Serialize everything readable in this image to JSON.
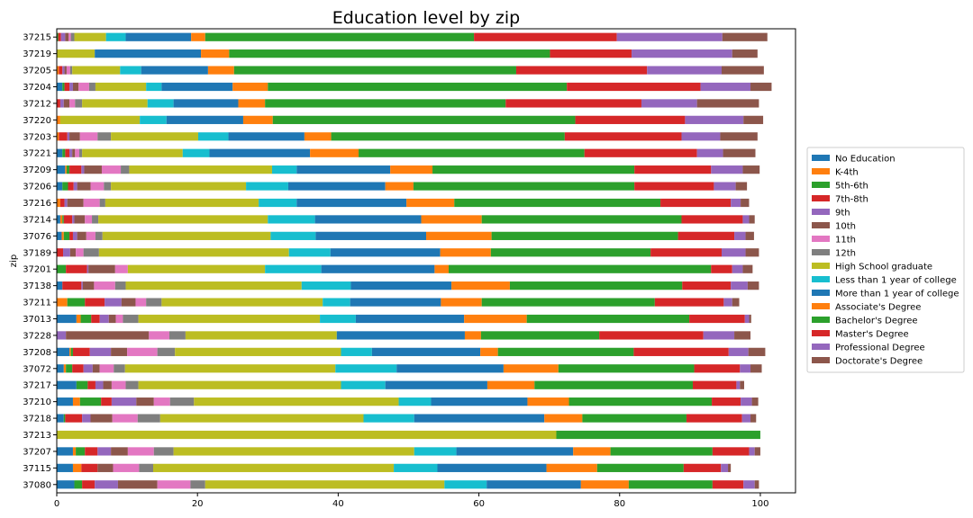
{
  "chart_data": {
    "type": "bar",
    "orientation": "horizontal",
    "stacked": true,
    "title": "Education level by zip",
    "xlabel": "",
    "ylabel": "zip",
    "xlim": [
      0,
      105
    ],
    "xticks": [
      "0",
      "20",
      "40",
      "60",
      "80",
      "100"
    ],
    "grid": false,
    "legend_position": "right",
    "categories": [
      "37215",
      "37219",
      "37205",
      "37204",
      "37212",
      "37220",
      "37203",
      "37221",
      "37209",
      "37206",
      "37216",
      "37214",
      "37076",
      "37189",
      "37201",
      "37138",
      "37211",
      "37013",
      "37228",
      "37208",
      "37072",
      "37217",
      "37210",
      "37218",
      "37213",
      "37207",
      "37115",
      "37080"
    ],
    "series": [
      {
        "name": "No Education",
        "color": "#1f77b4",
        "values": [
          0,
          0,
          0,
          0.8,
          0,
          0,
          0,
          0.8,
          1.2,
          0.8,
          0,
          0.5,
          0.7,
          0,
          0,
          0.8,
          0,
          2.8,
          0,
          1.8,
          1,
          2.8,
          2.3,
          1,
          0,
          2.3,
          2.3,
          2.5
        ]
      },
      {
        "name": "K-4th",
        "color": "#ff7f0e",
        "values": [
          0,
          0,
          0.3,
          0,
          0,
          0.5,
          0.3,
          0,
          0.2,
          0,
          0.5,
          0.3,
          0.3,
          0,
          0,
          0,
          1.5,
          0.6,
          0,
          0.2,
          0.3,
          0,
          1,
          0,
          0,
          0.4,
          1.2,
          0
        ]
      },
      {
        "name": "5th-6th",
        "color": "#2ca02c",
        "values": [
          0.2,
          0,
          0,
          0.3,
          0,
          0,
          0,
          0.4,
          0.4,
          0.8,
          0,
          0.2,
          0.8,
          0,
          1.3,
          0,
          2.5,
          1.5,
          0,
          0.3,
          0.9,
          1.6,
          3,
          0.2,
          0,
          1.3,
          0,
          1.1
        ]
      },
      {
        "name": "7th-8th",
        "color": "#d62728",
        "values": [
          0.4,
          0,
          0.5,
          0.7,
          0.5,
          0,
          1.2,
          0.6,
          1.7,
          0.8,
          0.6,
          1.2,
          0.5,
          0.9,
          3,
          2.7,
          2.8,
          1.2,
          0,
          2.4,
          1.6,
          1.1,
          1.5,
          2.4,
          0,
          1.8,
          2.3,
          1.8
        ]
      },
      {
        "name": "9th",
        "color": "#9467bd",
        "values": [
          0.6,
          0,
          0.3,
          0.5,
          0.5,
          0,
          0.3,
          0.4,
          0.4,
          0.5,
          0.4,
          0.3,
          0.6,
          1,
          0.2,
          0.2,
          2.4,
          1.3,
          1.3,
          3,
          1.3,
          1.1,
          3.5,
          1.2,
          0,
          1.9,
          0,
          3.3
        ]
      },
      {
        "name": "10th",
        "color": "#8c564b",
        "values": [
          0.5,
          0,
          0.3,
          0.8,
          0.8,
          0,
          1.5,
          0.4,
          2.5,
          1.9,
          2.3,
          1.5,
          1.3,
          0.8,
          3.8,
          1.6,
          2,
          1,
          11.8,
          2.3,
          1,
          1.2,
          2.5,
          3.1,
          0,
          2.4,
          2.2,
          5.6
        ]
      },
      {
        "name": "11th",
        "color": "#e377c2",
        "values": [
          0.3,
          0,
          0.5,
          1.5,
          0.8,
          0,
          2.5,
          0.6,
          2.7,
          1.9,
          2.3,
          1,
          1.3,
          1.1,
          1.8,
          3,
          1.5,
          1,
          2.9,
          4.3,
          2,
          2,
          2.3,
          3.6,
          0,
          3.7,
          3.7,
          4.7
        ]
      },
      {
        "name": "12th",
        "color": "#7f7f7f",
        "values": [
          0.5,
          0,
          0.3,
          0.9,
          1,
          0,
          1.9,
          0.4,
          1.2,
          1,
          0.8,
          0.9,
          1,
          2.2,
          0,
          1.5,
          2.2,
          2.2,
          2.3,
          2.5,
          1.6,
          1.8,
          3.4,
          3.2,
          0,
          2.8,
          2,
          2.1
        ]
      },
      {
        "name": "High School graduate",
        "color": "#bcbd22",
        "values": [
          4.5,
          5.4,
          6.8,
          7.2,
          9.3,
          11.3,
          12.4,
          14.3,
          20.3,
          19.2,
          21.8,
          24.1,
          23.9,
          27,
          19.5,
          25,
          22.9,
          25.8,
          21.5,
          23.6,
          29.9,
          28.8,
          29.1,
          28.9,
          71,
          34.2,
          34.2,
          34
        ]
      },
      {
        "name": "Less than 1 year of college",
        "color": "#17becf",
        "values": [
          2.8,
          0,
          3,
          2.2,
          3.7,
          3.8,
          4.3,
          3.8,
          3.5,
          6,
          5.4,
          6.7,
          6.4,
          5.9,
          8,
          7,
          3.9,
          5.1,
          0,
          4.4,
          8.7,
          6.3,
          4.6,
          7.2,
          0,
          6,
          6.2,
          6
        ]
      },
      {
        "name": "More than 1 year of college",
        "color": "#1f77b4",
        "values": [
          9.3,
          15.1,
          9.5,
          10.1,
          9.2,
          10.9,
          10.8,
          14.3,
          13.3,
          13.8,
          15.6,
          15.1,
          15.7,
          15.6,
          16.1,
          14.3,
          12.9,
          15.4,
          18.2,
          15.4,
          15.2,
          14.5,
          13.7,
          18.5,
          0,
          16.6,
          15.5,
          13.4
        ]
      },
      {
        "name": "Associate's Degree",
        "color": "#ff7f0e",
        "values": [
          2,
          4,
          3.7,
          5,
          3.8,
          4.2,
          3.8,
          6.9,
          6,
          4,
          6.8,
          8.6,
          9.3,
          7.2,
          2,
          8.3,
          5.8,
          8.9,
          2.3,
          2.5,
          7.8,
          6.7,
          5.9,
          5.4,
          0,
          5.3,
          7.2,
          6.8
        ]
      },
      {
        "name": "Bachelor's Degree",
        "color": "#2ca02c",
        "values": [
          38.2,
          45.6,
          40.1,
          42.5,
          34.2,
          43,
          33.2,
          32.1,
          28.7,
          31.4,
          29.3,
          28.4,
          26.5,
          22.7,
          37.3,
          24.5,
          24.6,
          23.1,
          16.8,
          19.3,
          19.3,
          22.5,
          20.3,
          14.8,
          29,
          14.5,
          12.3,
          11.9
        ]
      },
      {
        "name": "Master's Degree",
        "color": "#d62728",
        "values": [
          20.3,
          11.6,
          18.6,
          19,
          19.3,
          15.6,
          16.6,
          16,
          10.9,
          11.3,
          10,
          8.7,
          8,
          10.1,
          3,
          6.9,
          9.8,
          7.9,
          14.8,
          13.5,
          6.5,
          6.2,
          4.1,
          7.9,
          0,
          5.2,
          5.3,
          4.4
        ]
      },
      {
        "name": "Professional Degree",
        "color": "#9467bd",
        "values": [
          15,
          14.3,
          10.6,
          7.1,
          7.9,
          8.3,
          5.5,
          3.7,
          4.5,
          3.1,
          1.4,
          0.9,
          1.6,
          3.4,
          1.5,
          2.4,
          1.2,
          0.6,
          4.4,
          2.8,
          1.5,
          0.5,
          1.6,
          1.2,
          0,
          0.8,
          1,
          1.6
        ]
      },
      {
        "name": "Doctorate's Degree",
        "color": "#8c564b",
        "values": [
          6.4,
          3.6,
          6,
          3,
          8.8,
          2.8,
          5.3,
          4.6,
          2.4,
          1.6,
          1.2,
          0.8,
          1.2,
          1.9,
          1.4,
          1.6,
          1,
          0.3,
          2.3,
          2.4,
          1.6,
          0.6,
          0.9,
          0.8,
          0,
          0.8,
          0.4,
          0.6
        ]
      }
    ]
  }
}
